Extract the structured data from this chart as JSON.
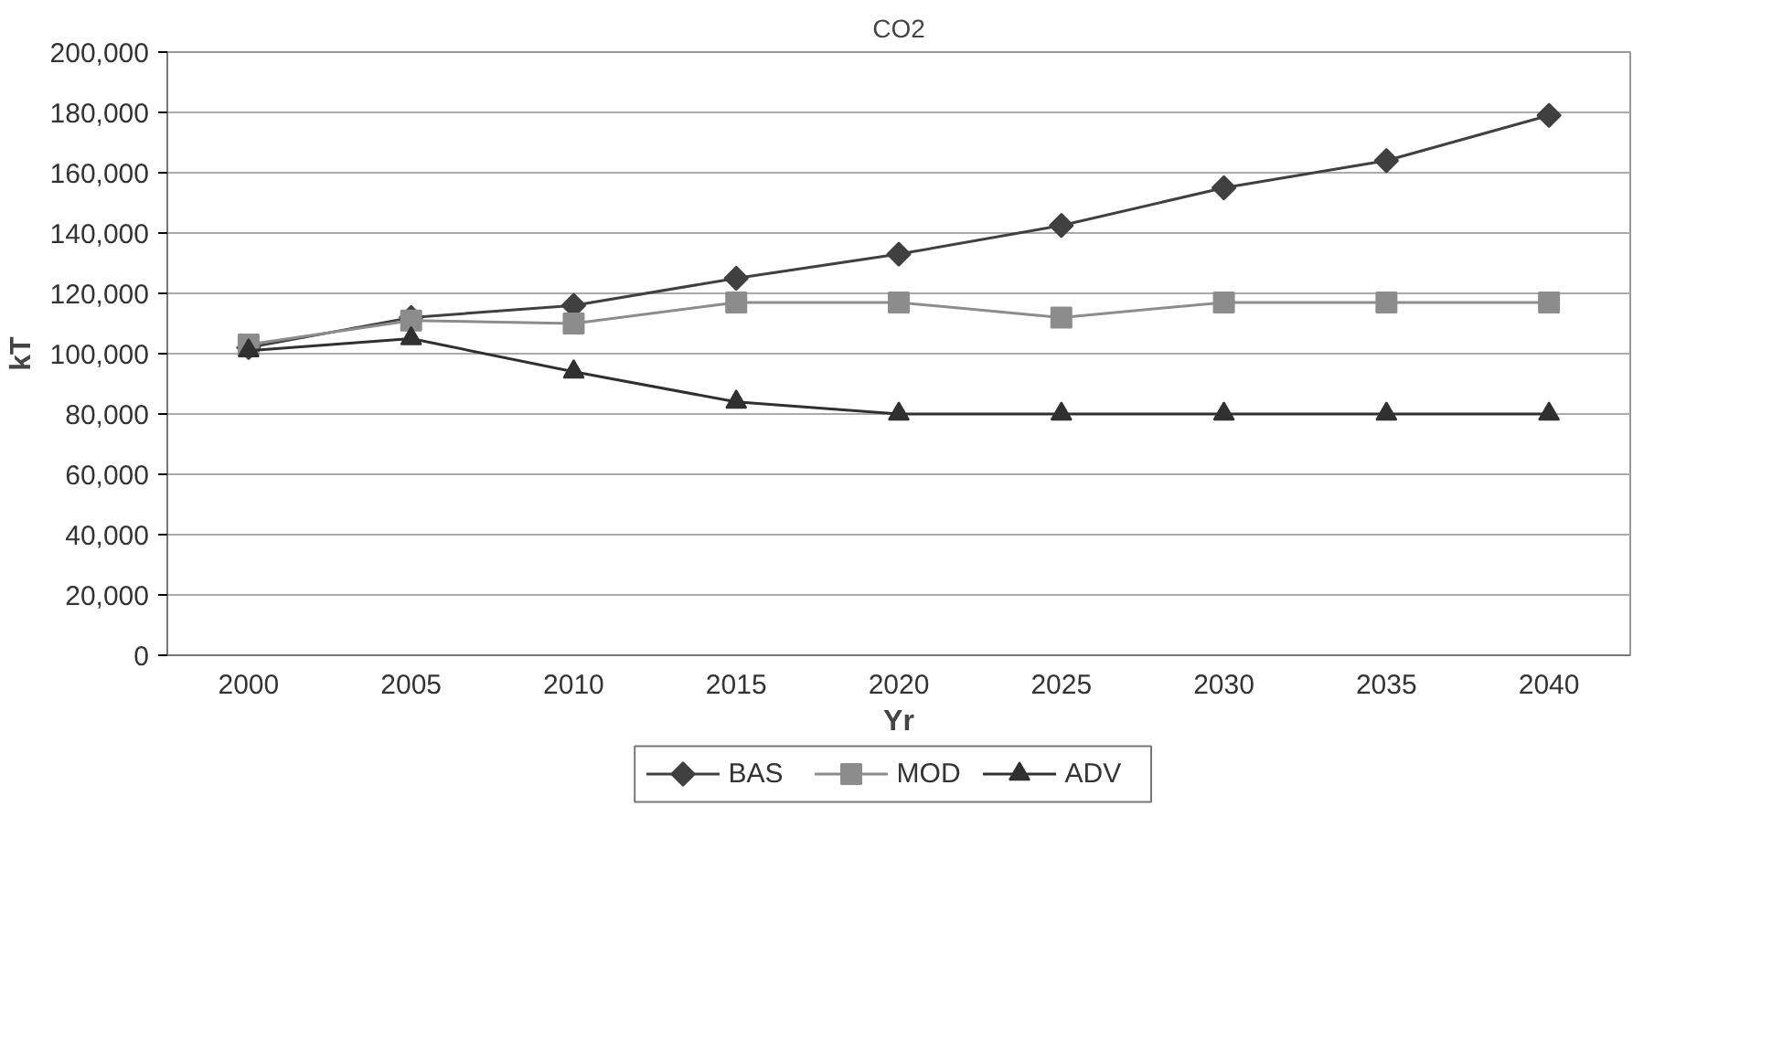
{
  "chart_data": {
    "type": "line",
    "title": "CO2",
    "xlabel": "Yr",
    "ylabel": "kT",
    "categories": [
      "2000",
      "2005",
      "2010",
      "2015",
      "2020",
      "2025",
      "2030",
      "2035",
      "2040"
    ],
    "series": [
      {
        "name": "BAS",
        "color": "#404040",
        "marker": "diamond",
        "values": [
          102000,
          112000,
          116000,
          125000,
          133000,
          142500,
          155000,
          164000,
          179000
        ]
      },
      {
        "name": "MOD",
        "color": "#8c8c8c",
        "marker": "square",
        "values": [
          103000,
          111000,
          110000,
          117000,
          117000,
          112000,
          117000,
          117000,
          117000
        ]
      },
      {
        "name": "ADV",
        "color": "#303030",
        "marker": "triangle",
        "values": [
          101000,
          105000,
          94000,
          84000,
          80000,
          80000,
          80000,
          80000,
          80000
        ]
      }
    ],
    "ylim": [
      0,
      200000
    ],
    "yticks": [
      {
        "value": 0,
        "label": "0"
      },
      {
        "value": 20000,
        "label": "20,000"
      },
      {
        "value": 40000,
        "label": "40,000"
      },
      {
        "value": 60000,
        "label": "60,000"
      },
      {
        "value": 80000,
        "label": "80,000"
      },
      {
        "value": 100000,
        "label": "100,000"
      },
      {
        "value": 120000,
        "label": "120,000"
      },
      {
        "value": 140000,
        "label": "140,000"
      },
      {
        "value": 160000,
        "label": "160,000"
      },
      {
        "value": 180000,
        "label": "180,000"
      },
      {
        "value": 200000,
        "label": "200,000"
      }
    ],
    "grid": "y",
    "legend": "bottom"
  }
}
